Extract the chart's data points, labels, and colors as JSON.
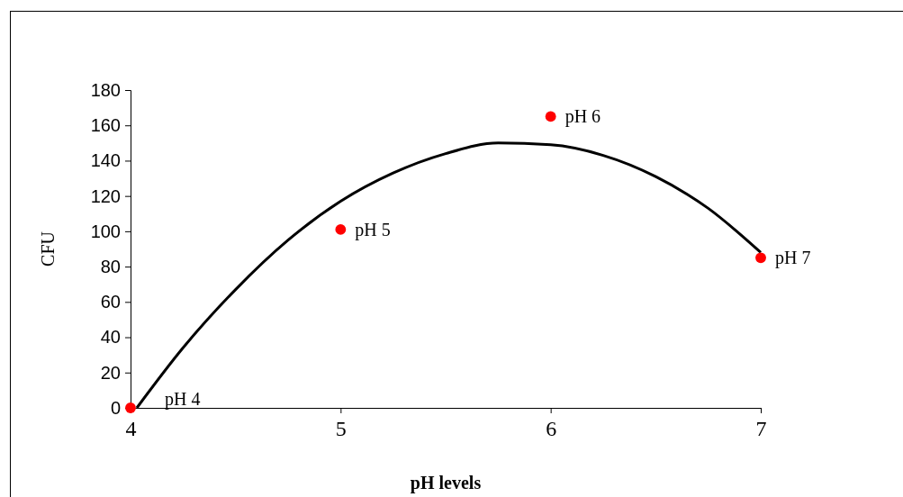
{
  "chart_data": {
    "type": "scatter",
    "xlabel": "pH levels",
    "ylabel": "CFU",
    "xlim": [
      4,
      7
    ],
    "xticks": [
      4,
      5,
      6,
      7
    ],
    "ylim": [
      0,
      180
    ],
    "yticks": [
      0,
      20,
      40,
      60,
      80,
      100,
      120,
      140,
      160,
      180
    ],
    "marker": "circle",
    "series": [
      {
        "type": "scatter",
        "color": "#ff0000",
        "x": [
          4,
          5,
          6,
          7
        ],
        "values": [
          0,
          101,
          165,
          85
        ]
      },
      {
        "type": "line",
        "marker": "none",
        "color": "#000000",
        "x": [
          4.03,
          4.25,
          4.5,
          4.75,
          5,
          5.25,
          5.5,
          5.75,
          6,
          6.25,
          6.5,
          6.75,
          7
        ],
        "values": [
          0,
          34,
          67,
          95,
          117,
          133,
          144,
          150,
          149,
          143,
          131,
          113,
          88
        ]
      }
    ],
    "annotations": [
      {
        "text": "pH 4",
        "x": 4,
        "y": 0
      },
      {
        "text": "pH 5",
        "x": 5,
        "y": 101
      },
      {
        "text": "pH 6",
        "x": 6,
        "y": 165
      },
      {
        "text": "pH 7",
        "x": 7,
        "y": 85
      }
    ]
  }
}
